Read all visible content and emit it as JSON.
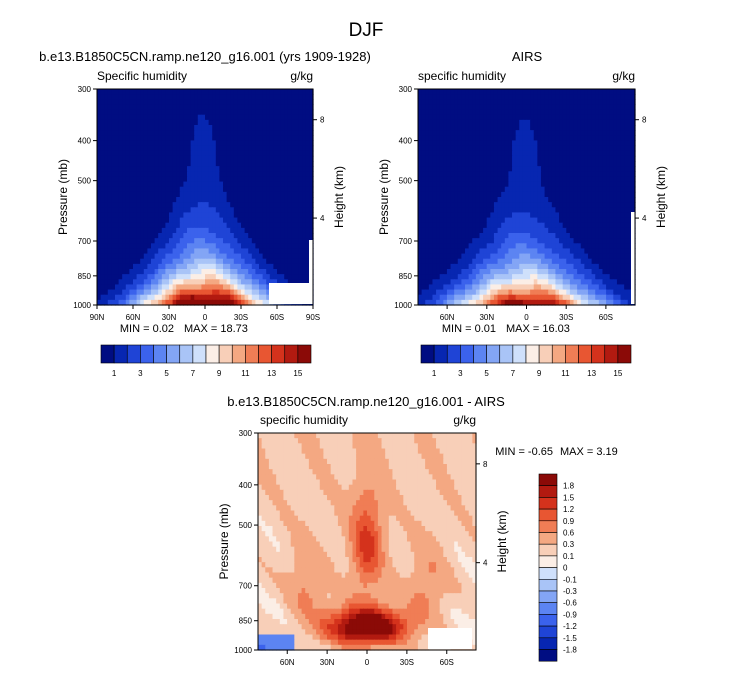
{
  "figure": {
    "title": "DJF"
  },
  "chart_data": [
    {
      "type": "heatmap",
      "id": "model",
      "title": "b.e13.B1850C5CN.ramp.ne120_g16.001 (yrs 1909-1928)",
      "subtitle_left": "Specific humidity",
      "subtitle_right": "g/kg",
      "xlabel": "",
      "ylabel": "Pressure (mb)",
      "y2label": "Height (km)",
      "x_ticks": [
        "90N",
        "60N",
        "30N",
        "0",
        "30S",
        "60S",
        "90S"
      ],
      "y_ticks": [
        "300",
        "400",
        "500",
        "700",
        "850",
        "1000"
      ],
      "y2_ticks": [
        "8",
        "4"
      ],
      "min_label": "MIN =  0.02",
      "max_label": "MAX = 18.73",
      "min": 0.02,
      "max": 18.73
    },
    {
      "type": "heatmap",
      "id": "airs",
      "title": "AIRS",
      "subtitle_left": "specific humidity",
      "subtitle_right": "g/kg",
      "xlabel": "",
      "ylabel": "Pressure (mb)",
      "y2label": "Height (km)",
      "x_ticks": [
        "60N",
        "30N",
        "0",
        "30S",
        "60S"
      ],
      "y_ticks": [
        "300",
        "400",
        "500",
        "700",
        "850",
        "1000"
      ],
      "y2_ticks": [
        "8",
        "4"
      ],
      "min_label": "MIN =  0.01",
      "max_label": "MAX = 16.03",
      "min": 0.01,
      "max": 16.03
    },
    {
      "type": "heatmap",
      "id": "diff",
      "title": "b.e13.B1850C5CN.ramp.ne120_g16.001 - AIRS",
      "subtitle_left": "specific humidity",
      "subtitle_right": "g/kg",
      "xlabel": "",
      "ylabel": "Pressure (mb)",
      "y2label": "Height (km)",
      "x_ticks": [
        "60N",
        "30N",
        "0",
        "30S",
        "60S"
      ],
      "y_ticks": [
        "300",
        "400",
        "500",
        "700",
        "850",
        "1000"
      ],
      "y2_ticks": [
        "8",
        "4"
      ],
      "min_label": "MIN = -0.65",
      "max_label": "MAX =  3.19",
      "min": -0.65,
      "max": 3.19
    }
  ],
  "colorbars": {
    "humidity": {
      "labels": [
        "1",
        "3",
        "5",
        "7",
        "9",
        "11",
        "13",
        "15"
      ],
      "colors": [
        "#000d82",
        "#0726b1",
        "#1f44d6",
        "#3b62ec",
        "#5c84f2",
        "#83a5f5",
        "#a9c4f7",
        "#cfe0fb",
        "#fbeee6",
        "#f8cfb8",
        "#f4a882",
        "#f07d55",
        "#e85632",
        "#d4321c",
        "#b21a10",
        "#8b0a07"
      ]
    },
    "difference": {
      "labels": [
        "1.8",
        "1.5",
        "1.2",
        "0.9",
        "0.6",
        "0.3",
        "0.1",
        "0",
        "-0.1",
        "-0.3",
        "-0.6",
        "-0.9",
        "-1.2",
        "-1.5",
        "-1.8"
      ],
      "colors": [
        "#8b0a07",
        "#b21a10",
        "#d4321c",
        "#e85632",
        "#f07d55",
        "#f4a882",
        "#f8cfb8",
        "#fbeee6",
        "#cfe0fb",
        "#a9c4f7",
        "#83a5f5",
        "#5c84f2",
        "#3b62ec",
        "#1f44d6",
        "#0726b1",
        "#000d82"
      ]
    }
  }
}
